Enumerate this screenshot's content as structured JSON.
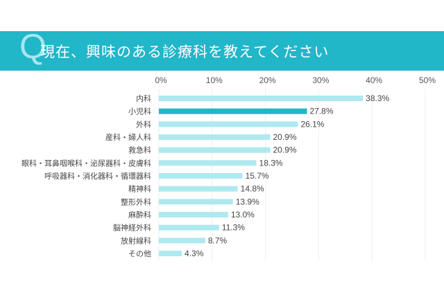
{
  "banner": {
    "q_mark": "Q",
    "title": "現在、興味のある診療科を教えてください"
  },
  "colors": {
    "banner": "#22b6c9",
    "bar": "#aee9f0",
    "highlight": "#22b6c9",
    "grid": "#eeeeee"
  },
  "chart_data": {
    "type": "bar",
    "orientation": "horizontal",
    "title": "現在、興味のある診療科を教えてください",
    "xlim": [
      0,
      50
    ],
    "xticks": [
      "0%",
      "10%",
      "20%",
      "30%",
      "40%",
      "50%"
    ],
    "categories": [
      "内科",
      "小児科",
      "外科",
      "産科・婦人科",
      "救急科",
      "眼科・耳鼻咽喉科・泌尿器科・皮膚科",
      "呼吸器科・消化器科・循環器科",
      "精神科",
      "整形外科",
      "麻酔科",
      "脳神経外科",
      "放射線科",
      "その他"
    ],
    "values": [
      38.3,
      27.8,
      26.1,
      20.9,
      20.9,
      18.3,
      15.7,
      14.8,
      13.9,
      13.0,
      11.3,
      8.7,
      4.3
    ],
    "value_labels": [
      "38.3%",
      "27.8%",
      "26.1%",
      "20.9%",
      "20.9%",
      "18.3%",
      "15.7%",
      "14.8%",
      "13.9%",
      "13.0%",
      "11.3%",
      "8.7%",
      "4.3%"
    ],
    "highlight_index": 1,
    "grid": true
  }
}
